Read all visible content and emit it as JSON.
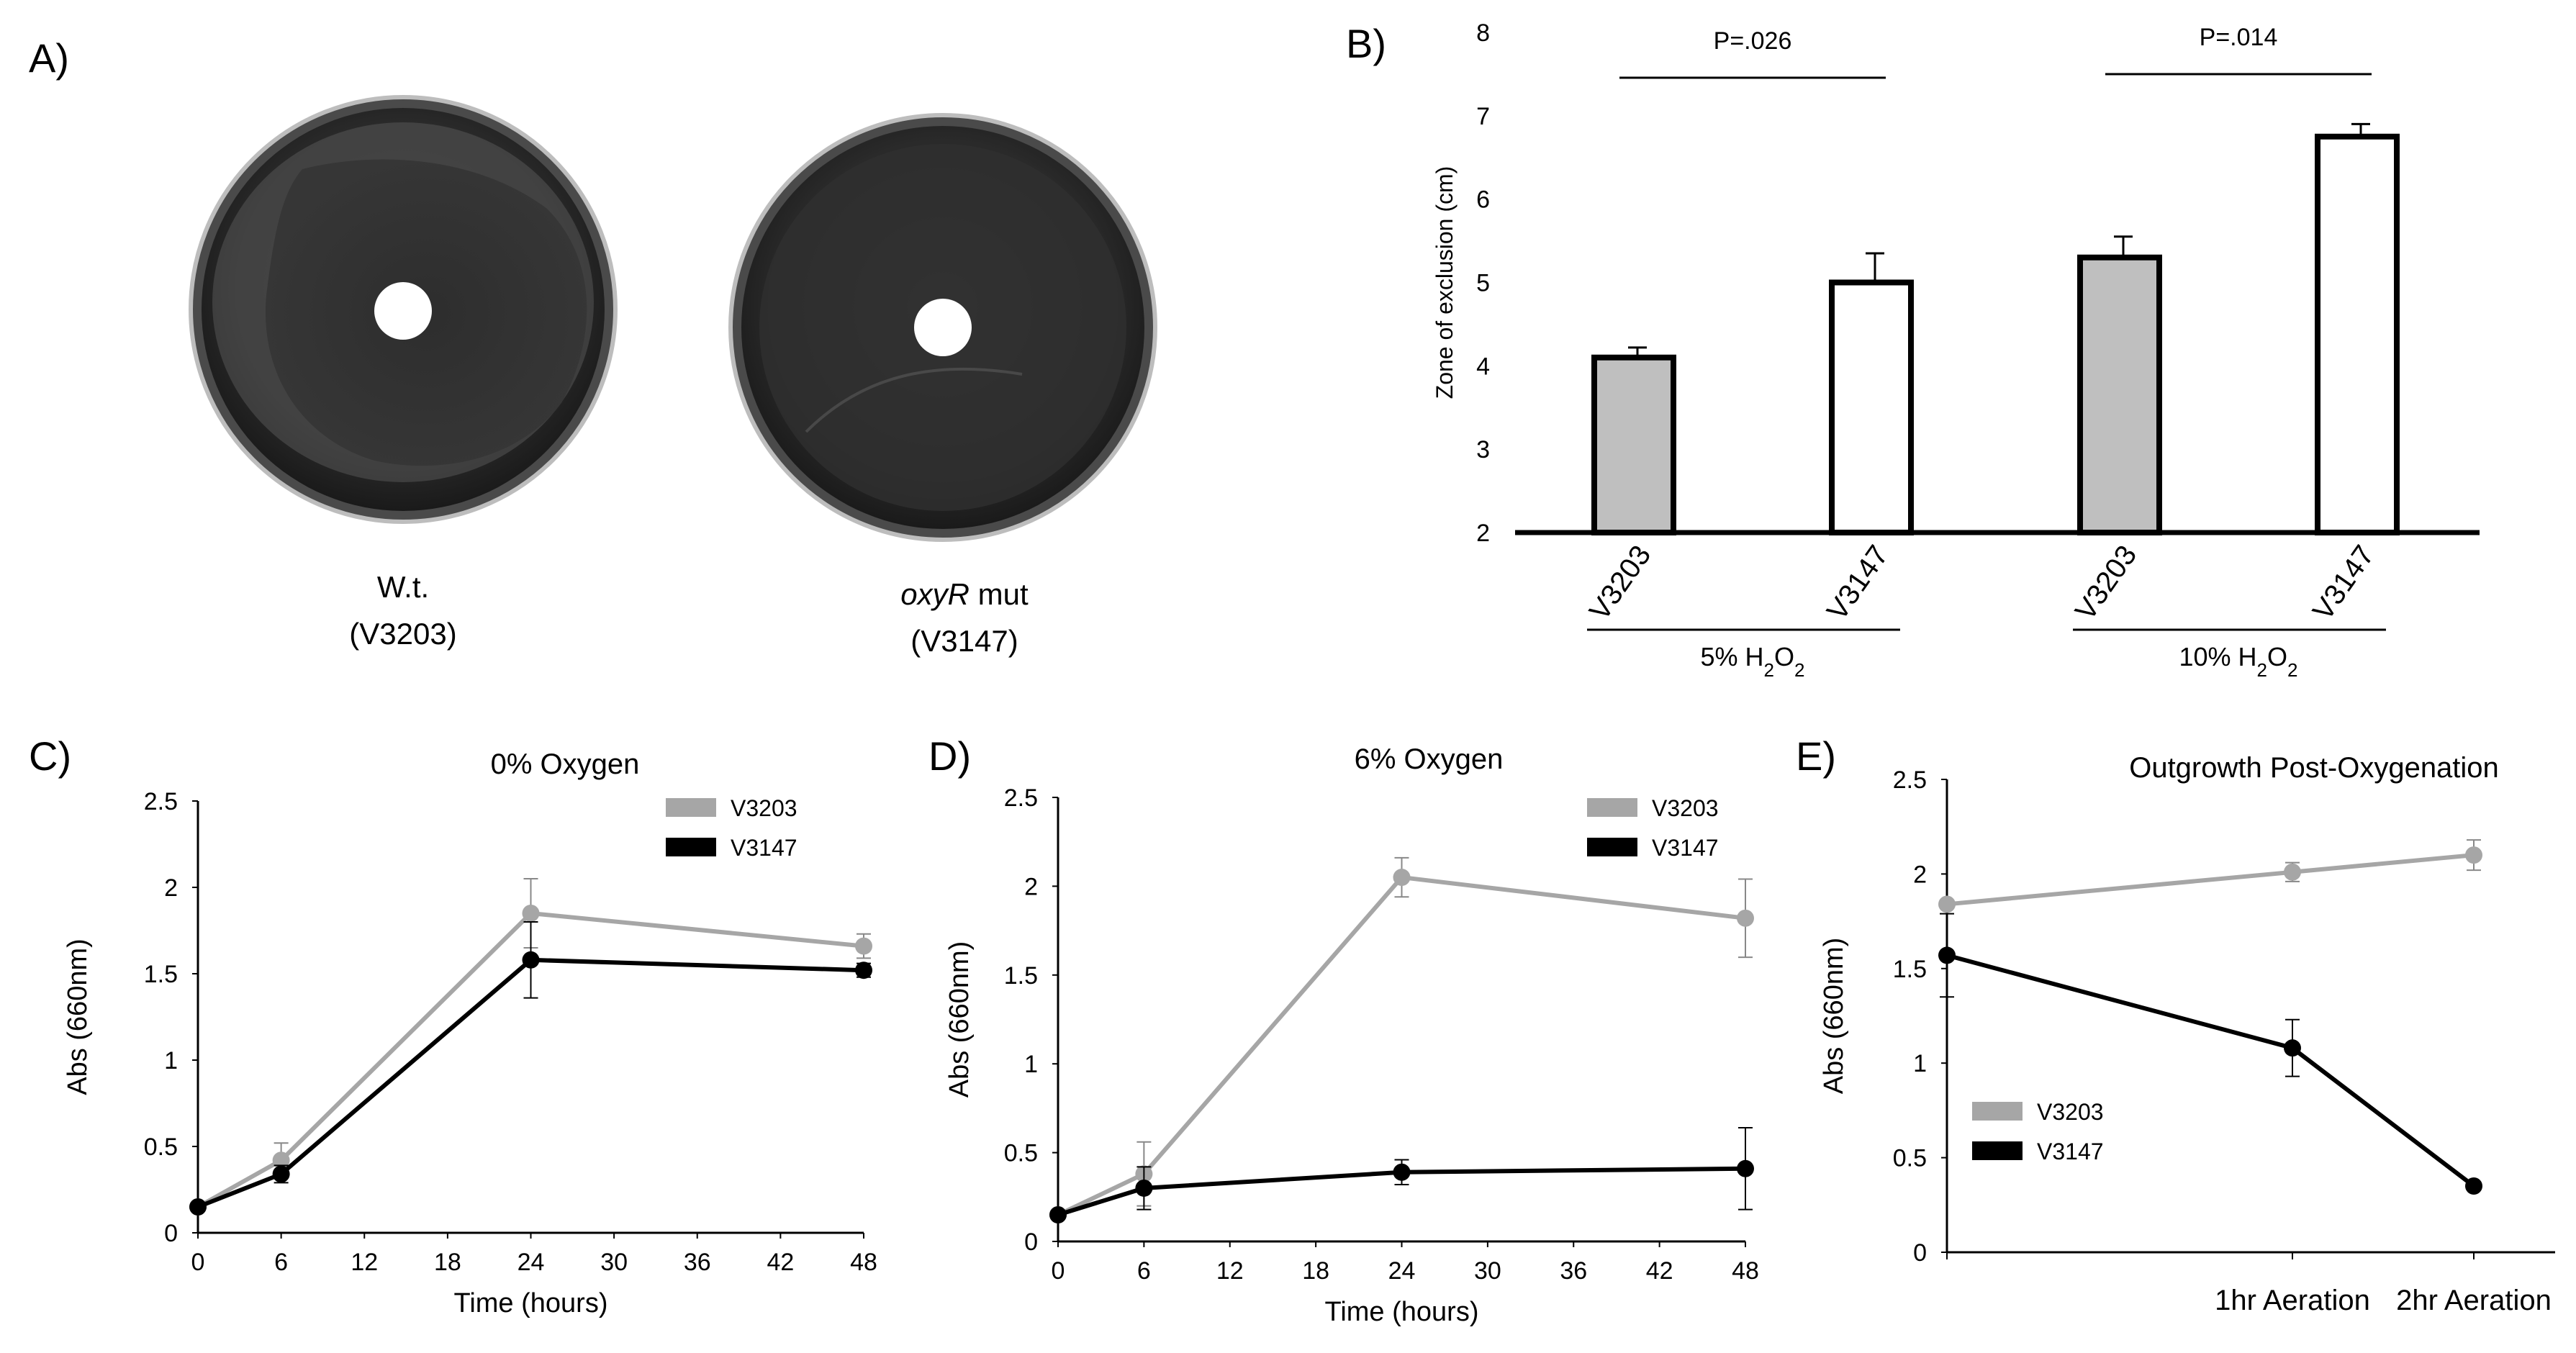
{
  "panels": {
    "a": "A)",
    "b": "B)",
    "c": "C)",
    "d": "D)",
    "e": "E)"
  },
  "panel_a": {
    "plate_left": {
      "line1": "W.t.",
      "line2": "(V3203)"
    },
    "plate_right": {
      "gene": "oxyR",
      "suffix": " mut",
      "line2": "(V3147)"
    }
  },
  "colors": {
    "v3203": "#a6a6a6",
    "v3147": "#000000",
    "bar_gray": "#bfbfbf"
  },
  "chart_data": [
    {
      "id": "B",
      "type": "bar",
      "title": "",
      "ylabel": "Zone of exclusion (cm)",
      "ylim": [
        2,
        8
      ],
      "yticks": [
        "2",
        "3",
        "4",
        "5",
        "6",
        "7",
        "8"
      ],
      "groups": [
        {
          "label_prefix": "5% H",
          "sub1": "2",
          "mid": "O",
          "sub2": "2",
          "bars": [
            {
              "name": "V3203",
              "value": 4.1,
              "err": 0.12,
              "fill": "gray"
            },
            {
              "name": "V3147",
              "value": 5.0,
              "err": 0.35,
              "fill": "white"
            }
          ],
          "pvalue": "P=.026"
        },
        {
          "label_prefix": "10% H",
          "sub1": "2",
          "mid": "O",
          "sub2": "2",
          "bars": [
            {
              "name": "V3203",
              "value": 5.3,
              "err": 0.25,
              "fill": "gray"
            },
            {
              "name": "V3147",
              "value": 6.75,
              "err": 0.15,
              "fill": "white"
            }
          ],
          "pvalue": "P=.014"
        }
      ]
    },
    {
      "id": "C",
      "type": "line",
      "title": "0% Oxygen",
      "xlabel": "Time (hours)",
      "ylabel": "Abs (660nm)",
      "xlim": [
        0,
        48
      ],
      "ylim": [
        0,
        2.5
      ],
      "xticks": [
        "0",
        "6",
        "12",
        "18",
        "24",
        "30",
        "36",
        "42",
        "48"
      ],
      "yticks": [
        "0",
        "0.5",
        "1",
        "1.5",
        "2",
        "2.5"
      ],
      "legend": [
        "V3203",
        "V3147"
      ],
      "series": [
        {
          "name": "V3203",
          "x": [
            0,
            6,
            24,
            48
          ],
          "values": [
            0.15,
            0.42,
            1.85,
            1.66
          ],
          "err": [
            0.02,
            0.1,
            0.2,
            0.07
          ]
        },
        {
          "name": "V3147",
          "x": [
            0,
            6,
            24,
            48
          ],
          "values": [
            0.15,
            0.34,
            1.58,
            1.52
          ],
          "err": [
            0.02,
            0.05,
            0.22,
            0.04
          ]
        }
      ]
    },
    {
      "id": "D",
      "type": "line",
      "title": "6% Oxygen",
      "xlabel": "Time (hours)",
      "ylabel": "Abs (660nm)",
      "xlim": [
        0,
        48
      ],
      "ylim": [
        0,
        2.5
      ],
      "xticks": [
        "0",
        "6",
        "12",
        "18",
        "24",
        "30",
        "36",
        "42",
        "48"
      ],
      "yticks": [
        "0",
        "0.5",
        "1",
        "1.5",
        "2",
        "2.5"
      ],
      "legend": [
        "V3203",
        "V3147"
      ],
      "series": [
        {
          "name": "V3203",
          "x": [
            0,
            6,
            24,
            48
          ],
          "values": [
            0.15,
            0.38,
            2.05,
            1.82
          ],
          "err": [
            0.02,
            0.18,
            0.11,
            0.22
          ]
        },
        {
          "name": "V3147",
          "x": [
            0,
            6,
            24,
            48
          ],
          "values": [
            0.15,
            0.3,
            0.39,
            0.41
          ],
          "err": [
            0.02,
            0.12,
            0.07,
            0.23
          ]
        }
      ]
    },
    {
      "id": "E",
      "type": "line",
      "title": "Outgrowth Post-Oxygenation",
      "xlabel": "",
      "ylabel": "Abs (660nm)",
      "ylim": [
        0,
        2.5
      ],
      "categories": [
        "",
        "1hr Aeration",
        "2hr Aeration"
      ],
      "yticks": [
        "0",
        "0.5",
        "1",
        "1.5",
        "2",
        "2.5"
      ],
      "legend": [
        "V3203",
        "V3147"
      ],
      "series": [
        {
          "name": "V3203",
          "values": [
            1.84,
            2.01,
            2.1
          ],
          "err": [
            0.02,
            0.05,
            0.08
          ]
        },
        {
          "name": "V3147",
          "values": [
            1.57,
            1.08,
            0.35
          ],
          "err": [
            0.22,
            0.15,
            0.02
          ]
        }
      ]
    }
  ]
}
